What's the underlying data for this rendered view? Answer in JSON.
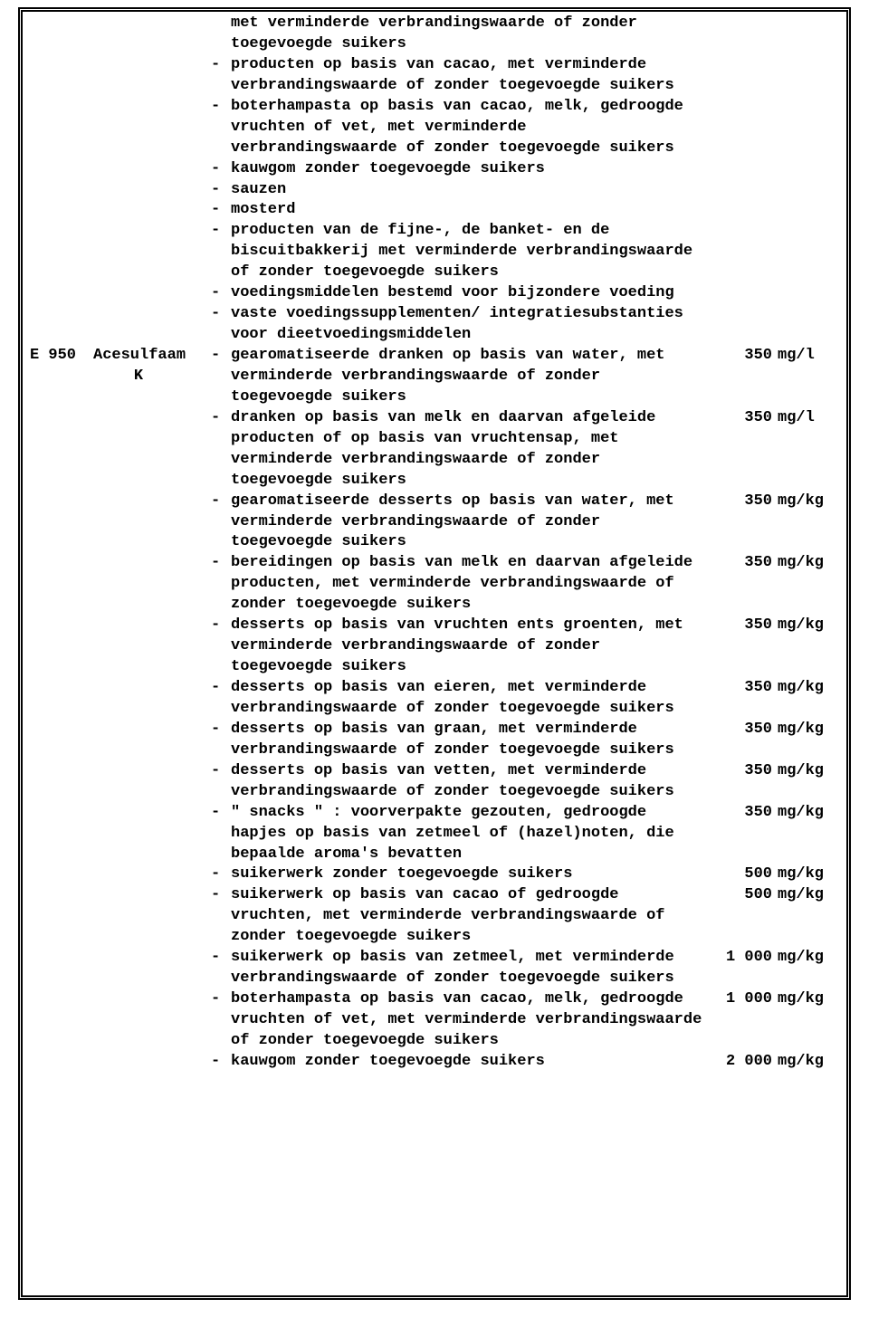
{
  "code": "E 950",
  "name1": "Acesulfaam",
  "name2": "K",
  "topItems": [
    "met verminderde verbrandingswaarde of zonder toegevoegde suikers",
    "producten op basis van cacao, met verminderde verbrandingswaarde of zonder toegevoegde suikers",
    "boterhampasta op basis van cacao, melk, gedroogde vruchten of vet, met verminderde verbrandingswaarde of zonder toegevoegde suikers",
    "kauwgom zonder toegevoegde suikers",
    "sauzen",
    "mosterd",
    "producten van de fijne-, de banket- en de biscuitbakkerij met verminderde verbrandingswaarde of zonder toegevoegde suikers",
    "voedingsmiddelen bestemd voor bijzondere voeding",
    "vaste voedingssupplementen/ integratiesubstanties voor dieetvoedingsmiddelen"
  ],
  "rows": [
    {
      "t": "gearomatiseerde dranken op basis van water, met verminderde verbrandingswaarde of zonder toegevoegde suikers",
      "a": "350",
      "u": "mg/l"
    },
    {
      "t": "dranken op basis van melk en daarvan afgeleide producten of op basis van vruchtensap, met verminderde verbrandingswaarde of zonder toegevoegde suikers",
      "a": "350",
      "u": "mg/l"
    },
    {
      "t": "gearomatiseerde desserts op basis van water, met verminderde verbrandingswaarde of zonder toegevoegde suikers",
      "a": "350",
      "u": "mg/kg"
    },
    {
      "t": "bereidingen op basis van melk en daarvan afgeleide producten, met verminderde verbrandingswaarde of zonder toegevoegde suikers",
      "a": "350",
      "u": "mg/kg"
    },
    {
      "t": "desserts op basis van vruchten ents groenten, met verminderde verbrandingswaarde of zonder toegevoegde suikers",
      "a": "350",
      "u": "mg/kg"
    },
    {
      "t": "desserts op basis van eieren, met verminderde verbrandingswaarde of zonder toegevoegde suikers",
      "a": "350",
      "u": "mg/kg"
    },
    {
      "t": "desserts op basis van graan, met verminderde verbrandingswaarde of zonder toegevoegde suikers",
      "a": "350",
      "u": "mg/kg"
    },
    {
      "t": "desserts op basis van vetten, met verminderde verbrandingswaarde of zonder toegevoegde suikers",
      "a": "350",
      "u": "mg/kg"
    },
    {
      "t": "\" snacks \" : voorverpakte gezouten, gedroogde hapjes op basis van zetmeel of (hazel)noten, die bepaalde aroma's bevatten",
      "a": "350",
      "u": "mg/kg"
    },
    {
      "t": "suikerwerk zonder toegevoegde suikers",
      "a": "500",
      "u": "mg/kg"
    },
    {
      "t": "suikerwerk op basis van cacao of gedroogde vruchten, met verminderde verbrandingswaarde of zonder toegevoegde suikers",
      "a": "500",
      "u": "mg/kg"
    },
    {
      "t": "suikerwerk op basis van zetmeel, met verminderde verbrandingswaarde of zonder toegevoegde suikers",
      "a": "1 000",
      "u": "mg/kg"
    },
    {
      "t": "boterhampasta op basis van cacao, melk, gedroogde vruchten of vet, met verminderde verbrandingswaarde of zonder toegevoegde suikers",
      "a": "1 000",
      "u": "mg/kg"
    },
    {
      "t": "kauwgom zonder toegevoegde suikers",
      "a": "2 000",
      "u": "mg/kg"
    }
  ]
}
